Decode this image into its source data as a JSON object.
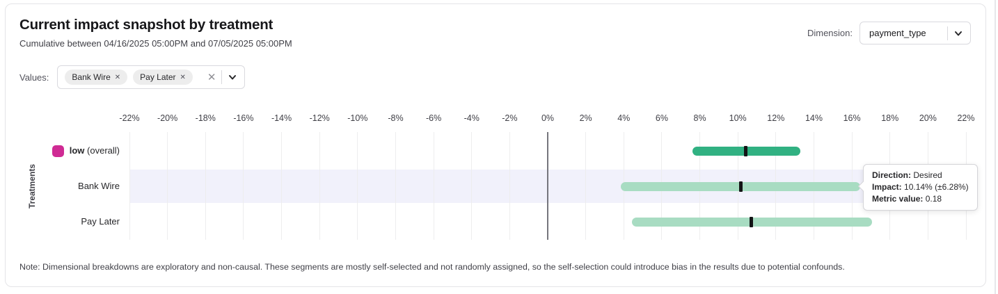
{
  "header": {
    "title": "Current impact snapshot by treatment",
    "subtitle": "Cumulative between 04/16/2025 05:00PM and 07/05/2025 05:00PM",
    "dimension_label": "Dimension:",
    "dimension_value": "payment_type"
  },
  "values_bar": {
    "label": "Values:",
    "chips": [
      {
        "label": "Bank Wire"
      },
      {
        "label": "Pay Later"
      }
    ],
    "remove_icon": "✕",
    "clear_icon": "✕"
  },
  "chart_data": {
    "type": "range_bar",
    "ylabel": "Treatments",
    "axis": {
      "min": -22,
      "max": 22,
      "step": 2,
      "unit": "%"
    },
    "grid": true,
    "zero_line": 0,
    "rows": [
      {
        "label": "low",
        "label_note": "(overall)",
        "swatch_color": "#cf2b94",
        "bar_color": "#31b182",
        "low": 7.6,
        "high": 13.3,
        "center": 10.4,
        "highlighted": false
      },
      {
        "label": "Bank Wire",
        "bar_color": "#a8dcc2",
        "low": 3.86,
        "high": 16.42,
        "center": 10.14,
        "highlighted": true
      },
      {
        "label": "Pay Later",
        "bar_color": "#a8dcc2",
        "low": 4.43,
        "high": 17.06,
        "center": 10.72,
        "highlighted": false
      }
    ]
  },
  "tooltip": {
    "lines": [
      {
        "label": "Direction:",
        "value": "Desired"
      },
      {
        "label": "Impact:",
        "value": "10.14% (±6.28%)"
      },
      {
        "label": "Metric value:",
        "value": "0.18"
      }
    ]
  },
  "footnote": "Note: Dimensional breakdowns are exploratory and non-causal. These segments are mostly self-selected and not randomly assigned, so the self-selection could introduce bias in the results due to potential confounds."
}
